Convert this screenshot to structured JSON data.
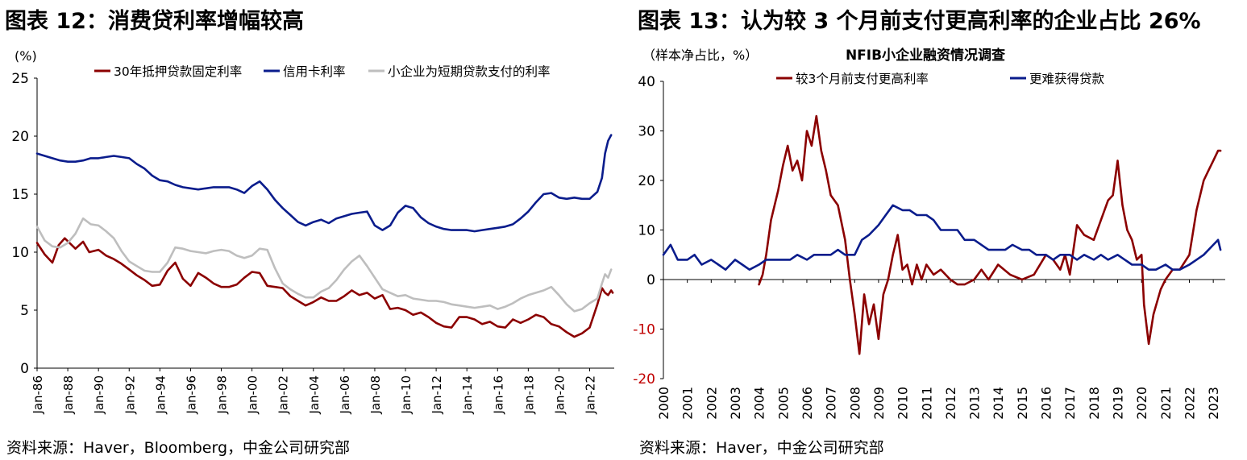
{
  "left": {
    "title": "图表 12：消费贷利率增幅较高",
    "source": "资料来源：Haver，Bloomberg，中金公司研究部",
    "chart_data": {
      "type": "line",
      "title": "",
      "ylabel": "(%)",
      "ylim": [
        0,
        25
      ],
      "yticks": [
        "0",
        "5",
        "10",
        "15",
        "20",
        "25"
      ],
      "x_range": [
        1986,
        2023.6
      ],
      "xtick_labels": [
        "Jan-86",
        "Jan-88",
        "Jan-90",
        "Jan-92",
        "Jan-94",
        "Jan-96",
        "Jan-98",
        "Jan-00",
        "Jan-02",
        "Jan-04",
        "Jan-06",
        "Jan-08",
        "Jan-10",
        "Jan-12",
        "Jan-14",
        "Jan-16",
        "Jan-18",
        "Jan-20",
        "Jan-22"
      ],
      "xtick_values": [
        1986,
        1988,
        1990,
        1992,
        1994,
        1996,
        1998,
        2000,
        2002,
        2004,
        2006,
        2008,
        2010,
        2012,
        2014,
        2016,
        2018,
        2020,
        2022
      ],
      "legend": "top",
      "grid": false,
      "series": [
        {
          "name": "30年抵押贷款固定利率",
          "color": "#8B0000",
          "x": [
            1986.0,
            1986.5,
            1987.0,
            1987.4,
            1987.8,
            1988.5,
            1989.0,
            1989.4,
            1990.0,
            1990.5,
            1991.0,
            1991.5,
            1992.0,
            1992.5,
            1993.0,
            1993.5,
            1994.0,
            1994.5,
            1995.0,
            1995.5,
            1996.0,
            1996.5,
            1997.0,
            1997.5,
            1998.0,
            1998.5,
            1999.0,
            1999.5,
            2000.0,
            2000.5,
            2001.0,
            2001.5,
            2002.0,
            2002.5,
            2003.0,
            2003.5,
            2004.0,
            2004.5,
            2005.0,
            2005.5,
            2006.0,
            2006.5,
            2007.0,
            2007.5,
            2008.0,
            2008.5,
            2009.0,
            2009.5,
            2010.0,
            2010.5,
            2011.0,
            2011.5,
            2012.0,
            2012.5,
            2013.0,
            2013.5,
            2014.0,
            2014.5,
            2015.0,
            2015.5,
            2016.0,
            2016.5,
            2017.0,
            2017.5,
            2018.0,
            2018.5,
            2019.0,
            2019.5,
            2020.0,
            2020.5,
            2021.0,
            2021.5,
            2022.0,
            2022.5,
            2022.8,
            2023.0,
            2023.2,
            2023.4,
            2023.5
          ],
          "y": [
            10.8,
            9.8,
            9.1,
            10.6,
            11.2,
            10.3,
            10.9,
            10.0,
            10.2,
            9.7,
            9.4,
            9.0,
            8.5,
            8.0,
            7.6,
            7.1,
            7.2,
            8.4,
            9.1,
            7.7,
            7.1,
            8.2,
            7.8,
            7.3,
            7.0,
            7.0,
            7.2,
            7.8,
            8.3,
            8.2,
            7.1,
            7.0,
            6.9,
            6.2,
            5.8,
            5.4,
            5.7,
            6.1,
            5.8,
            5.8,
            6.2,
            6.7,
            6.3,
            6.5,
            6.0,
            6.3,
            5.1,
            5.2,
            5.0,
            4.6,
            4.8,
            4.4,
            3.9,
            3.6,
            3.5,
            4.4,
            4.4,
            4.2,
            3.8,
            4.0,
            3.6,
            3.5,
            4.2,
            3.9,
            4.2,
            4.6,
            4.4,
            3.8,
            3.6,
            3.1,
            2.7,
            3.0,
            3.5,
            5.5,
            6.9,
            6.5,
            6.3,
            6.7,
            6.5
          ]
        },
        {
          "name": "信用卡利率",
          "color": "#0A1C8C",
          "x": [
            1986.0,
            1986.5,
            1987.0,
            1987.5,
            1988.0,
            1988.5,
            1989.0,
            1989.5,
            1990.0,
            1990.5,
            1991.0,
            1991.5,
            1992.0,
            1992.5,
            1993.0,
            1993.5,
            1994.0,
            1994.5,
            1995.0,
            1995.5,
            1996.0,
            1996.5,
            1997.0,
            1997.5,
            1998.0,
            1998.5,
            1999.0,
            1999.5,
            2000.0,
            2000.5,
            2001.0,
            2001.5,
            2002.0,
            2002.5,
            2003.0,
            2003.5,
            2004.0,
            2004.5,
            2005.0,
            2005.5,
            2006.0,
            2006.5,
            2007.0,
            2007.5,
            2008.0,
            2008.5,
            2009.0,
            2009.5,
            2010.0,
            2010.5,
            2011.0,
            2011.5,
            2012.0,
            2012.5,
            2013.0,
            2013.5,
            2014.0,
            2014.5,
            2015.0,
            2015.5,
            2016.0,
            2016.5,
            2017.0,
            2017.5,
            2018.0,
            2018.5,
            2019.0,
            2019.5,
            2020.0,
            2020.5,
            2021.0,
            2021.5,
            2022.0,
            2022.5,
            2022.8,
            2023.0,
            2023.2,
            2023.4
          ],
          "y": [
            18.5,
            18.3,
            18.1,
            17.9,
            17.8,
            17.8,
            17.9,
            18.1,
            18.1,
            18.2,
            18.3,
            18.2,
            18.1,
            17.6,
            17.2,
            16.6,
            16.2,
            16.1,
            15.8,
            15.6,
            15.5,
            15.4,
            15.5,
            15.6,
            15.6,
            15.6,
            15.4,
            15.1,
            15.7,
            16.1,
            15.4,
            14.5,
            13.8,
            13.2,
            12.6,
            12.3,
            12.6,
            12.8,
            12.5,
            12.9,
            13.1,
            13.3,
            13.4,
            13.5,
            12.3,
            11.9,
            12.3,
            13.4,
            14.0,
            13.8,
            13.0,
            12.5,
            12.2,
            12.0,
            11.9,
            11.9,
            11.9,
            11.8,
            11.9,
            12.0,
            12.1,
            12.2,
            12.4,
            12.9,
            13.5,
            14.3,
            15.0,
            15.1,
            14.7,
            14.6,
            14.7,
            14.6,
            14.6,
            15.2,
            16.4,
            18.5,
            19.6,
            20.1
          ]
        },
        {
          "name": "小企业为短期贷款支付的利率",
          "color": "#BEBEBE",
          "x": [
            1986.0,
            1986.5,
            1987.0,
            1987.5,
            1988.0,
            1988.5,
            1989.0,
            1989.5,
            1990.0,
            1990.5,
            1991.0,
            1991.5,
            1992.0,
            1992.5,
            1993.0,
            1993.5,
            1994.0,
            1994.5,
            1995.0,
            1995.5,
            1996.0,
            1996.5,
            1997.0,
            1997.5,
            1998.0,
            1998.5,
            1999.0,
            1999.5,
            2000.0,
            2000.5,
            2001.0,
            2001.5,
            2002.0,
            2002.5,
            2003.0,
            2003.5,
            2004.0,
            2004.5,
            2005.0,
            2005.5,
            2006.0,
            2006.5,
            2007.0,
            2007.5,
            2008.0,
            2008.5,
            2009.0,
            2009.5,
            2010.0,
            2010.5,
            2011.0,
            2011.5,
            2012.0,
            2012.5,
            2013.0,
            2013.5,
            2014.0,
            2014.5,
            2015.0,
            2015.5,
            2016.0,
            2016.5,
            2017.0,
            2017.5,
            2018.0,
            2018.5,
            2019.0,
            2019.5,
            2020.0,
            2020.5,
            2021.0,
            2021.5,
            2022.0,
            2022.5,
            2022.8,
            2023.0,
            2023.2,
            2023.4
          ],
          "y": [
            12.2,
            11.0,
            10.5,
            10.4,
            10.8,
            11.6,
            12.9,
            12.4,
            12.3,
            11.8,
            11.2,
            10.1,
            9.2,
            8.8,
            8.4,
            8.3,
            8.3,
            9.1,
            10.4,
            10.3,
            10.1,
            10.0,
            9.9,
            10.1,
            10.2,
            10.1,
            9.7,
            9.5,
            9.7,
            10.3,
            10.2,
            8.6,
            7.3,
            6.8,
            6.4,
            6.1,
            6.1,
            6.6,
            6.9,
            7.6,
            8.5,
            9.2,
            9.7,
            8.8,
            7.8,
            6.8,
            6.5,
            6.2,
            6.3,
            6.0,
            5.9,
            5.8,
            5.8,
            5.7,
            5.5,
            5.4,
            5.3,
            5.2,
            5.3,
            5.4,
            5.1,
            5.3,
            5.6,
            6.0,
            6.3,
            6.5,
            6.7,
            7.0,
            6.3,
            5.5,
            4.9,
            5.1,
            5.6,
            6.0,
            7.3,
            8.1,
            7.8,
            8.5
          ]
        }
      ]
    }
  },
  "right": {
    "title": "图表 13：认为较 3 个月前支付更高利率的企业占比 26%",
    "source": "资料来源：Haver，中金公司研究部",
    "chart_data": {
      "type": "line",
      "title": "NFIB小企业融资情况调查",
      "ylabel": "（样本净占比，%）",
      "ylim": [
        -20,
        40
      ],
      "yticks": [
        "-20",
        "-10",
        "0",
        "10",
        "20",
        "30",
        "40"
      ],
      "x_range": [
        2000,
        2023.5
      ],
      "xtick_labels": [
        "2000",
        "2001",
        "2002",
        "2003",
        "2004",
        "2005",
        "2006",
        "2007",
        "2008",
        "2009",
        "2010",
        "2011",
        "2012",
        "2013",
        "2014",
        "2015",
        "2016",
        "2017",
        "2018",
        "2019",
        "2020",
        "2021",
        "2022",
        "2023"
      ],
      "xtick_values": [
        2000,
        2001,
        2002,
        2003,
        2004,
        2005,
        2006,
        2007,
        2008,
        2009,
        2010,
        2011,
        2012,
        2013,
        2014,
        2015,
        2016,
        2017,
        2018,
        2019,
        2020,
        2021,
        2022,
        2023
      ],
      "legend": "top",
      "grid": false,
      "series": [
        {
          "name": "较3个月前支付更高利率",
          "color": "#8B0000",
          "x": [
            2004.0,
            2004.15,
            2004.3,
            2004.5,
            2004.8,
            2005.0,
            2005.2,
            2005.4,
            2005.6,
            2005.8,
            2006.0,
            2006.2,
            2006.4,
            2006.6,
            2006.8,
            2007.0,
            2007.3,
            2007.6,
            2007.8,
            2008.0,
            2008.2,
            2008.4,
            2008.6,
            2008.8,
            2009.0,
            2009.2,
            2009.4,
            2009.6,
            2009.8,
            2010.0,
            2010.2,
            2010.4,
            2010.6,
            2010.8,
            2011.0,
            2011.3,
            2011.6,
            2012.0,
            2012.3,
            2012.6,
            2013.0,
            2013.3,
            2013.6,
            2014.0,
            2014.5,
            2015.0,
            2015.5,
            2016.0,
            2016.3,
            2016.6,
            2016.8,
            2017.0,
            2017.3,
            2017.6,
            2018.0,
            2018.3,
            2018.6,
            2018.8,
            2019.0,
            2019.2,
            2019.4,
            2019.6,
            2019.8,
            2020.0,
            2020.1,
            2020.3,
            2020.5,
            2020.8,
            2021.0,
            2021.3,
            2021.6,
            2022.0,
            2022.3,
            2022.6,
            2022.8,
            2023.0,
            2023.2,
            2023.3
          ],
          "y": [
            -1,
            1,
            5,
            12,
            18,
            23,
            27,
            22,
            24,
            20,
            30,
            27,
            33,
            26,
            22,
            17,
            15,
            8,
            0,
            -7,
            -15,
            -3,
            -9,
            -5,
            -12,
            -3,
            0,
            5,
            9,
            2,
            3,
            -1,
            3,
            0,
            3,
            1,
            2,
            0,
            -1,
            -1,
            0,
            2,
            0,
            3,
            1,
            0,
            1,
            5,
            4,
            2,
            5,
            1,
            11,
            9,
            8,
            12,
            16,
            17,
            24,
            15,
            10,
            8,
            4,
            5,
            -5,
            -13,
            -7,
            -2,
            0,
            2,
            2,
            5,
            14,
            20,
            22,
            24,
            26,
            26
          ]
        },
        {
          "name": "更难获得贷款",
          "color": "#0A1C8C",
          "x": [
            2000.0,
            2000.3,
            2000.6,
            2001.0,
            2001.3,
            2001.6,
            2002.0,
            2002.3,
            2002.6,
            2003.0,
            2003.3,
            2003.6,
            2004.0,
            2004.3,
            2004.6,
            2005.0,
            2005.3,
            2005.6,
            2006.0,
            2006.3,
            2006.6,
            2007.0,
            2007.3,
            2007.6,
            2008.0,
            2008.3,
            2008.6,
            2009.0,
            2009.3,
            2009.6,
            2010.0,
            2010.3,
            2010.6,
            2011.0,
            2011.3,
            2011.6,
            2012.0,
            2012.3,
            2012.6,
            2013.0,
            2013.3,
            2013.6,
            2014.0,
            2014.3,
            2014.6,
            2015.0,
            2015.3,
            2015.6,
            2016.0,
            2016.3,
            2016.6,
            2017.0,
            2017.3,
            2017.6,
            2018.0,
            2018.3,
            2018.6,
            2019.0,
            2019.3,
            2019.6,
            2020.0,
            2020.3,
            2020.6,
            2021.0,
            2021.3,
            2021.6,
            2022.0,
            2022.3,
            2022.6,
            2023.0,
            2023.2,
            2023.3
          ],
          "y": [
            5,
            7,
            4,
            4,
            5,
            3,
            4,
            3,
            2,
            4,
            3,
            2,
            3,
            4,
            4,
            4,
            4,
            5,
            4,
            5,
            5,
            5,
            6,
            5,
            5,
            8,
            9,
            11,
            13,
            15,
            14,
            14,
            13,
            13,
            12,
            10,
            10,
            10,
            8,
            8,
            7,
            6,
            6,
            6,
            7,
            6,
            6,
            5,
            5,
            4,
            5,
            5,
            4,
            5,
            4,
            5,
            4,
            5,
            4,
            3,
            3,
            2,
            2,
            3,
            2,
            2,
            3,
            4,
            5,
            7,
            8,
            6
          ]
        }
      ]
    }
  }
}
